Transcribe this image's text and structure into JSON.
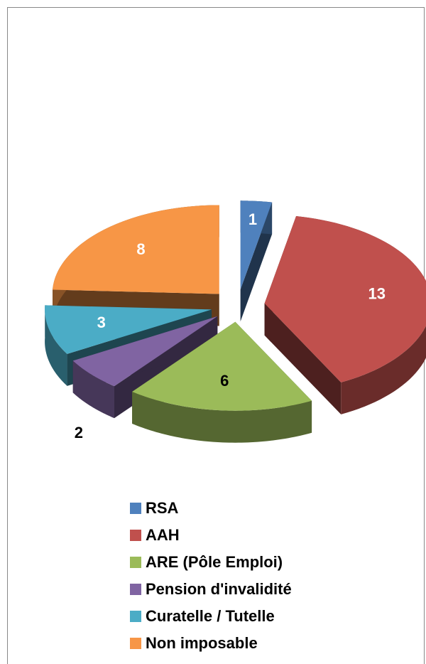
{
  "chart_data": {
    "type": "pie3d",
    "categories": [
      "RSA",
      "AAH",
      "ARE (Pôle Emploi)",
      "Pension d'invalidité",
      "Curatelle / Tutelle",
      "Non imposable"
    ],
    "values": [
      1,
      13,
      6,
      2,
      3,
      8
    ],
    "colors": [
      "#4f81bd",
      "#c0504d",
      "#9bbb59",
      "#8064a2",
      "#4bacc6",
      "#f79646"
    ],
    "legend": "bottom"
  }
}
